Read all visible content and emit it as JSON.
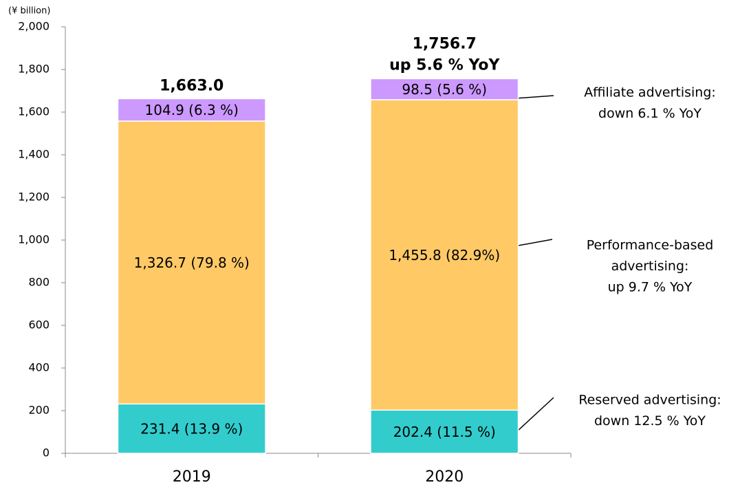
{
  "chart_data": {
    "type": "stacked_bar",
    "unit_label": "(¥ billion)",
    "categories": [
      "2019",
      "2020"
    ],
    "series": [
      {
        "color": "#33cccc",
        "values": [
          231.4,
          202.4
        ],
        "value_labels": [
          "231.4 (13.9 %)",
          "202.4 (11.5 %)"
        ],
        "annotation": [
          "Reserved advertising:",
          "down 12.5 % YoY"
        ]
      },
      {
        "color": "#ffc966",
        "values": [
          1326.7,
          1455.8
        ],
        "value_labels": [
          "1,326.7 (79.8 %)",
          "1,455.8 (82.9%)"
        ],
        "annotation": [
          "Performance-based",
          "advertising:",
          "up 9.7 % YoY"
        ]
      },
      {
        "color": "#cc99ff",
        "values": [
          104.9,
          98.5
        ],
        "value_labels": [
          "104.9 (6.3 %)",
          "98.5 (5.6 %)"
        ],
        "annotation": [
          "Affiliate advertising:",
          "down 6.1 % YoY"
        ]
      }
    ],
    "totals": [
      {
        "value": 1663.0,
        "label": "1,663.0"
      },
      {
        "value": 1756.7,
        "label": "1,756.7",
        "note": "up 5.6 % YoY"
      }
    ],
    "ylim": [
      0,
      2000
    ],
    "yticks": [
      0,
      200,
      400,
      600,
      800,
      {
        "value": 1000,
        "label": "1,000"
      },
      {
        "value": 1200,
        "label": "1,200"
      },
      {
        "value": 1400,
        "label": "1,400"
      },
      {
        "value": 1600,
        "label": "1,600"
      },
      {
        "value": 1800,
        "label": "1,800"
      },
      {
        "value": 2000,
        "label": "2,000"
      }
    ]
  }
}
